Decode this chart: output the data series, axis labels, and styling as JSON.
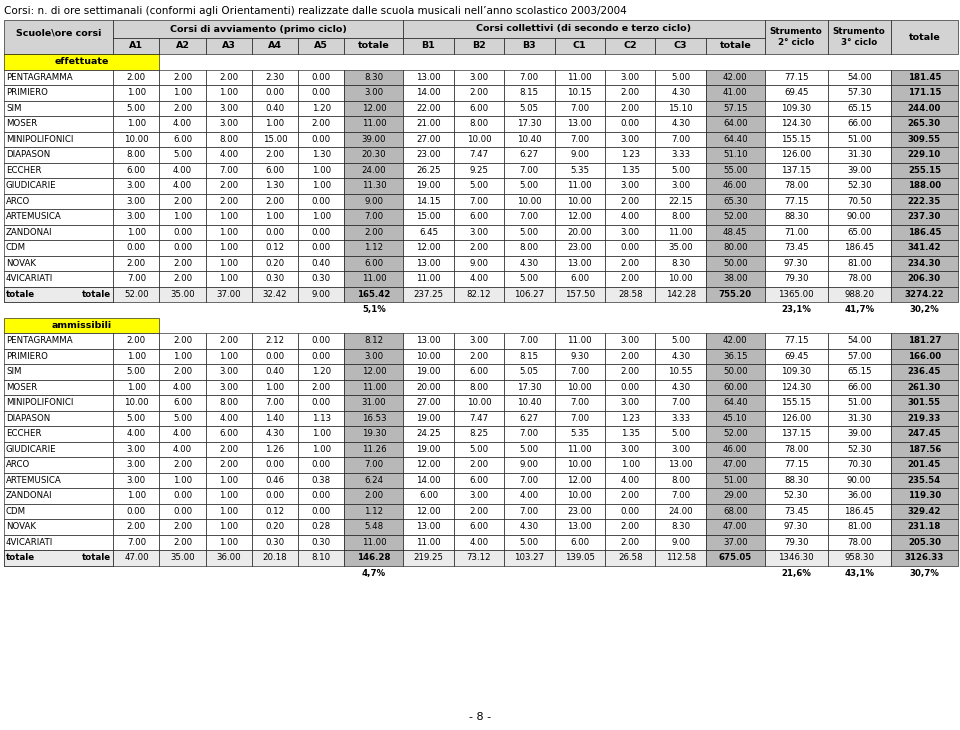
{
  "title": "Corsi: n. di ore settimanali (conformi agli Orientamenti) realizzate dalle scuola musicali nell’anno scolastico 2003/2004",
  "header1": "Corsi di avviamento (primo ciclo)",
  "header2": "Corsi collettivi (di secondo e terzo ciclo)",
  "rows_effettuate": [
    [
      "PENTAGRAMMA",
      "2.00",
      "2.00",
      "2.00",
      "2.30",
      "0.00",
      "8.30",
      "13.00",
      "3.00",
      "7.00",
      "11.00",
      "3.00",
      "5.00",
      "42.00",
      "77.15",
      "54.00",
      "181.45"
    ],
    [
      "PRIMIERO",
      "1.00",
      "1.00",
      "1.00",
      "0.00",
      "0.00",
      "3.00",
      "14.00",
      "2.00",
      "8.15",
      "10.15",
      "2.00",
      "4.30",
      "41.00",
      "69.45",
      "57.30",
      "171.15"
    ],
    [
      "SIM",
      "5.00",
      "2.00",
      "3.00",
      "0.40",
      "1.20",
      "12.00",
      "22.00",
      "6.00",
      "5.05",
      "7.00",
      "2.00",
      "15.10",
      "57.15",
      "109.30",
      "65.15",
      "244.00"
    ],
    [
      "MOSER",
      "1.00",
      "4.00",
      "3.00",
      "1.00",
      "2.00",
      "11.00",
      "21.00",
      "8.00",
      "17.30",
      "13.00",
      "0.00",
      "4.30",
      "64.00",
      "124.30",
      "66.00",
      "265.30"
    ],
    [
      "MINIPOLIFONICI",
      "10.00",
      "6.00",
      "8.00",
      "15.00",
      "0.00",
      "39.00",
      "27.00",
      "10.00",
      "10.40",
      "7.00",
      "3.00",
      "7.00",
      "64.40",
      "155.15",
      "51.00",
      "309.55"
    ],
    [
      "DIAPASON",
      "8.00",
      "5.00",
      "4.00",
      "2.00",
      "1.30",
      "20.30",
      "23.00",
      "7.47",
      "6.27",
      "9.00",
      "1.23",
      "3.33",
      "51.10",
      "126.00",
      "31.30",
      "229.10"
    ],
    [
      "ECCHER",
      "6.00",
      "4.00",
      "7.00",
      "6.00",
      "1.00",
      "24.00",
      "26.25",
      "9.25",
      "7.00",
      "5.35",
      "1.35",
      "5.00",
      "55.00",
      "137.15",
      "39.00",
      "255.15"
    ],
    [
      "GIUDICARIE",
      "3.00",
      "4.00",
      "2.00",
      "1.30",
      "1.00",
      "11.30",
      "19.00",
      "5.00",
      "5.00",
      "11.00",
      "3.00",
      "3.00",
      "46.00",
      "78.00",
      "52.30",
      "188.00"
    ],
    [
      "ARCO",
      "3.00",
      "2.00",
      "2.00",
      "2.00",
      "0.00",
      "9.00",
      "14.15",
      "7.00",
      "10.00",
      "10.00",
      "2.00",
      "22.15",
      "65.30",
      "77.15",
      "70.50",
      "222.35"
    ],
    [
      "ARTEMUSICA",
      "3.00",
      "1.00",
      "1.00",
      "1.00",
      "1.00",
      "7.00",
      "15.00",
      "6.00",
      "7.00",
      "12.00",
      "4.00",
      "8.00",
      "52.00",
      "88.30",
      "90.00",
      "237.30"
    ],
    [
      "ZANDONAI",
      "1.00",
      "0.00",
      "1.00",
      "0.00",
      "0.00",
      "2.00",
      "6.45",
      "3.00",
      "5.00",
      "20.00",
      "3.00",
      "11.00",
      "48.45",
      "71.00",
      "65.00",
      "186.45"
    ],
    [
      "CDM",
      "0.00",
      "0.00",
      "1.00",
      "0.12",
      "0.00",
      "1.12",
      "12.00",
      "2.00",
      "8.00",
      "23.00",
      "0.00",
      "35.00",
      "80.00",
      "73.45",
      "186.45",
      "341.42"
    ],
    [
      "NOVAK",
      "2.00",
      "2.00",
      "1.00",
      "0.20",
      "0.40",
      "6.00",
      "13.00",
      "9.00",
      "4.30",
      "13.00",
      "2.00",
      "8.30",
      "50.00",
      "97.30",
      "81.00",
      "234.30"
    ],
    [
      "4VICARIATI",
      "7.00",
      "2.00",
      "1.00",
      "0.30",
      "0.30",
      "11.00",
      "11.00",
      "4.00",
      "5.00",
      "6.00",
      "2.00",
      "10.00",
      "38.00",
      "79.30",
      "78.00",
      "206.30"
    ]
  ],
  "totale_effettuate": [
    "totale",
    "52.00",
    "35.00",
    "37.00",
    "32.42",
    "9.00",
    "165.42",
    "237.25",
    "82.12",
    "106.27",
    "157.50",
    "28.58",
    "142.28",
    "755.20",
    "1365.00",
    "988.20",
    "3274.22"
  ],
  "perc_effettuate": [
    "",
    "",
    "",
    "",
    "",
    "",
    "5,1%",
    "",
    "",
    "",
    "",
    "",
    "",
    "",
    "23,1%",
    "41,7%",
    "30,2%"
  ],
  "rows_ammissibili": [
    [
      "PENTAGRAMMA",
      "2.00",
      "2.00",
      "2.00",
      "2.12",
      "0.00",
      "8.12",
      "13.00",
      "3.00",
      "7.00",
      "11.00",
      "3.00",
      "5.00",
      "42.00",
      "77.15",
      "54.00",
      "181.27"
    ],
    [
      "PRIMIERO",
      "1.00",
      "1.00",
      "1.00",
      "0.00",
      "0.00",
      "3.00",
      "10.00",
      "2.00",
      "8.15",
      "9.30",
      "2.00",
      "4.30",
      "36.15",
      "69.45",
      "57.00",
      "166.00"
    ],
    [
      "SIM",
      "5.00",
      "2.00",
      "3.00",
      "0.40",
      "1.20",
      "12.00",
      "19.00",
      "6.00",
      "5.05",
      "7.00",
      "2.00",
      "10.55",
      "50.00",
      "109.30",
      "65.15",
      "236.45"
    ],
    [
      "MOSER",
      "1.00",
      "4.00",
      "3.00",
      "1.00",
      "2.00",
      "11.00",
      "20.00",
      "8.00",
      "17.30",
      "10.00",
      "0.00",
      "4.30",
      "60.00",
      "124.30",
      "66.00",
      "261.30"
    ],
    [
      "MINIPOLIFONICI",
      "10.00",
      "6.00",
      "8.00",
      "7.00",
      "0.00",
      "31.00",
      "27.00",
      "10.00",
      "10.40",
      "7.00",
      "3.00",
      "7.00",
      "64.40",
      "155.15",
      "51.00",
      "301.55"
    ],
    [
      "DIAPASON",
      "5.00",
      "5.00",
      "4.00",
      "1.40",
      "1.13",
      "16.53",
      "19.00",
      "7.47",
      "6.27",
      "7.00",
      "1.23",
      "3.33",
      "45.10",
      "126.00",
      "31.30",
      "219.33"
    ],
    [
      "ECCHER",
      "4.00",
      "4.00",
      "6.00",
      "4.30",
      "1.00",
      "19.30",
      "24.25",
      "8.25",
      "7.00",
      "5.35",
      "1.35",
      "5.00",
      "52.00",
      "137.15",
      "39.00",
      "247.45"
    ],
    [
      "GIUDICARIE",
      "3.00",
      "4.00",
      "2.00",
      "1.26",
      "1.00",
      "11.26",
      "19.00",
      "5.00",
      "5.00",
      "11.00",
      "3.00",
      "3.00",
      "46.00",
      "78.00",
      "52.30",
      "187.56"
    ],
    [
      "ARCO",
      "3.00",
      "2.00",
      "2.00",
      "0.00",
      "0.00",
      "7.00",
      "12.00",
      "2.00",
      "9.00",
      "10.00",
      "1.00",
      "13.00",
      "47.00",
      "77.15",
      "70.30",
      "201.45"
    ],
    [
      "ARTEMUSICA",
      "3.00",
      "1.00",
      "1.00",
      "0.46",
      "0.38",
      "6.24",
      "14.00",
      "6.00",
      "7.00",
      "12.00",
      "4.00",
      "8.00",
      "51.00",
      "88.30",
      "90.00",
      "235.54"
    ],
    [
      "ZANDONAI",
      "1.00",
      "0.00",
      "1.00",
      "0.00",
      "0.00",
      "2.00",
      "6.00",
      "3.00",
      "4.00",
      "10.00",
      "2.00",
      "7.00",
      "29.00",
      "52.30",
      "36.00",
      "119.30"
    ],
    [
      "CDM",
      "0.00",
      "0.00",
      "1.00",
      "0.12",
      "0.00",
      "1.12",
      "12.00",
      "2.00",
      "7.00",
      "23.00",
      "0.00",
      "24.00",
      "68.00",
      "73.45",
      "186.45",
      "329.42"
    ],
    [
      "NOVAK",
      "2.00",
      "2.00",
      "1.00",
      "0.20",
      "0.28",
      "5.48",
      "13.00",
      "6.00",
      "4.30",
      "13.00",
      "2.00",
      "8.30",
      "47.00",
      "97.30",
      "81.00",
      "231.18"
    ],
    [
      "4VICARIATI",
      "7.00",
      "2.00",
      "1.00",
      "0.30",
      "0.30",
      "11.00",
      "11.00",
      "4.00",
      "5.00",
      "6.00",
      "2.00",
      "9.00",
      "37.00",
      "79.30",
      "78.00",
      "205.30"
    ]
  ],
  "totale_ammissibili": [
    "totale",
    "47.00",
    "35.00",
    "36.00",
    "20.18",
    "8.10",
    "146.28",
    "219.25",
    "73.12",
    "103.27",
    "139.05",
    "26.58",
    "112.58",
    "675.05",
    "1346.30",
    "958.30",
    "3126.33"
  ],
  "perc_ammissibili": [
    "",
    "",
    "",
    "",
    "",
    "",
    "4,7%",
    "",
    "",
    "",
    "",
    "",
    "",
    "",
    "21,6%",
    "43,1%",
    "30,7%"
  ],
  "bg_color_header": "#d3d3d3",
  "bg_color_totale_col": "#b8b8b8",
  "bg_color_label": "#ffff00",
  "bg_color_totale_row": "#ebebeb",
  "font_size": 6.2,
  "font_size_header": 6.8,
  "font_size_title": 7.5
}
